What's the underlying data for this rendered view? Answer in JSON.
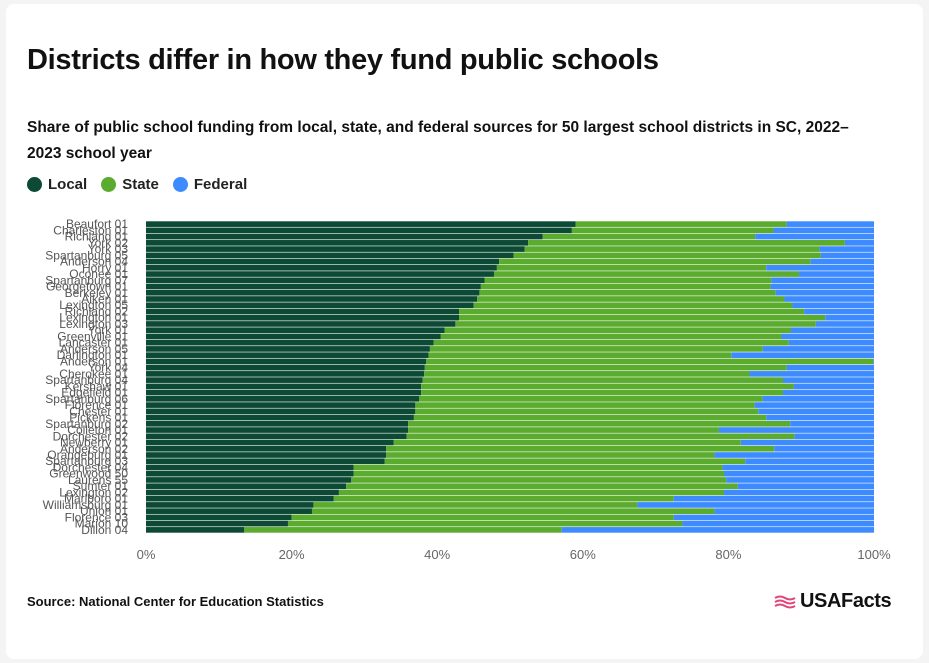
{
  "header": {
    "title": "Districts differ in how they fund public schools",
    "subtitle": "Share of public school funding from local, state, and federal sources for 50 largest school districts in SC, 2022–2023 school year"
  },
  "legend": [
    {
      "label": "Local",
      "color": "#0d4a35"
    },
    {
      "label": "State",
      "color": "#5aab2e"
    },
    {
      "label": "Federal",
      "color": "#3d8bff"
    }
  ],
  "footer": {
    "source": "Source: National Center for Education Statistics",
    "brand": "USAFacts"
  },
  "chart_data": {
    "type": "bar",
    "orientation": "horizontal",
    "stacked": true,
    "xlim": [
      0,
      100
    ],
    "x_ticks": [
      "0%",
      "20%",
      "40%",
      "60%",
      "80%",
      "100%"
    ],
    "categories": [
      "Beaufort 01",
      "Charleston 01",
      "Richland 01",
      "York 02",
      "York 03",
      "Spartanburg 05",
      "Anderson 04",
      "Horry 01",
      "Oconee 01",
      "Spartanburg 07",
      "Georgetown 01",
      "Berkeley 01",
      "Aiken 01",
      "Lexington 05",
      "Richland 02",
      "Lexington 01",
      "Lexington 03",
      "York 01",
      "Greenville 01",
      "Lancaster 01",
      "Anderson 05",
      "Darlington 01",
      "Anderson 01",
      "York 04",
      "Cherokee 01",
      "Spartanburg 04",
      "Kershaw 01",
      "Edgefield 01",
      "Spartanburg 06",
      "Florence 01",
      "Chester 01",
      "Pickens 01",
      "Spartanburg 02",
      "Colleton 01",
      "Dorchester 02",
      "Newberry 01",
      "Anderson 02",
      "Orangeburg 01",
      "Spartanburg 03",
      "Dorchester 04",
      "Greenwood 50",
      "Laurens 55",
      "Sumter 01",
      "Lexington 02",
      "Marlboro 01",
      "Williamsburg 01",
      "Union 01",
      "Florence 03",
      "Marion 10",
      "Dillon 04"
    ],
    "series": [
      {
        "name": "Local",
        "values": [
          59,
          58.5,
          54.5,
          52.5,
          52,
          50.5,
          48.5,
          48.2,
          47.8,
          46.5,
          46,
          45.8,
          45.5,
          45,
          43,
          43,
          42.5,
          41,
          40.5,
          39.5,
          39,
          38.8,
          38.5,
          38.3,
          38.2,
          38,
          37.8,
          37.8,
          37.5,
          37,
          37,
          36.8,
          36,
          36,
          35.8,
          34,
          33,
          33,
          32.8,
          28.5,
          28.5,
          28.2,
          27.5,
          26.5,
          25.8,
          23,
          22.8,
          20,
          19.5,
          13.5
        ]
      },
      {
        "name": "State",
        "values": [
          29,
          27.7,
          29.2,
          43.5,
          40.5,
          42.2,
          42.8,
          37,
          41.9,
          39.4,
          39.8,
          40.7,
          42.2,
          43.8,
          47.4,
          50.3,
          49.5,
          47.6,
          46.8,
          48.8,
          45.7,
          41.6,
          61.4,
          49.7,
          44.7,
          49.5,
          51.2,
          49.7,
          47.2,
          46.6,
          47.1,
          48.4,
          52.5,
          42.7,
          53.3,
          47.7,
          53.3,
          45.1,
          49.5,
          50.7,
          50.9,
          51.5,
          53.8,
          52.9,
          46.7,
          44.5,
          55.3,
          52.5,
          54.2,
          43.6
        ]
      },
      {
        "name": "Federal",
        "values": [
          12,
          13.8,
          16.3,
          4,
          7.5,
          7.3,
          8.7,
          14.8,
          10.3,
          14.1,
          14.2,
          13.5,
          12.3,
          11.2,
          9.6,
          6.7,
          8,
          11.4,
          12.7,
          11.7,
          15.3,
          19.6,
          0.1,
          12,
          17.1,
          12.5,
          11,
          12.5,
          15.3,
          16.4,
          15.9,
          14.8,
          11.5,
          21.3,
          10.9,
          18.3,
          13.7,
          21.9,
          17.7,
          20.8,
          20.6,
          20.3,
          18.7,
          20.6,
          27.5,
          32.5,
          21.9,
          27.5,
          26.3,
          42.9
        ]
      }
    ]
  }
}
